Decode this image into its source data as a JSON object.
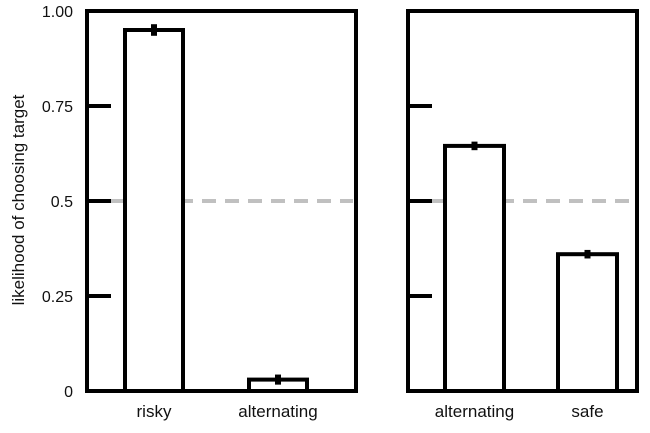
{
  "chart_data": {
    "type": "bar",
    "ylabel": "likelihood of choosing target",
    "ylim": [
      0,
      1
    ],
    "y_ticks": [
      "1.00",
      "0.75",
      "0.5",
      "0.25",
      "0"
    ],
    "reference_line": {
      "value": 0.5,
      "style": "dashed",
      "color": "#c0c0c0"
    },
    "colors": {
      "frame": "#000000",
      "bar_fill": "#ffffff",
      "bar_stroke": "#000000"
    },
    "panels": [
      {
        "categories": [
          "risky",
          "alternating"
        ],
        "values": [
          0.95,
          0.03
        ],
        "errors": [
          0.01,
          0.008
        ]
      },
      {
        "categories": [
          "alternating",
          "safe"
        ],
        "values": [
          0.645,
          0.36
        ],
        "errors": [
          0.006,
          0.006
        ]
      }
    ]
  }
}
